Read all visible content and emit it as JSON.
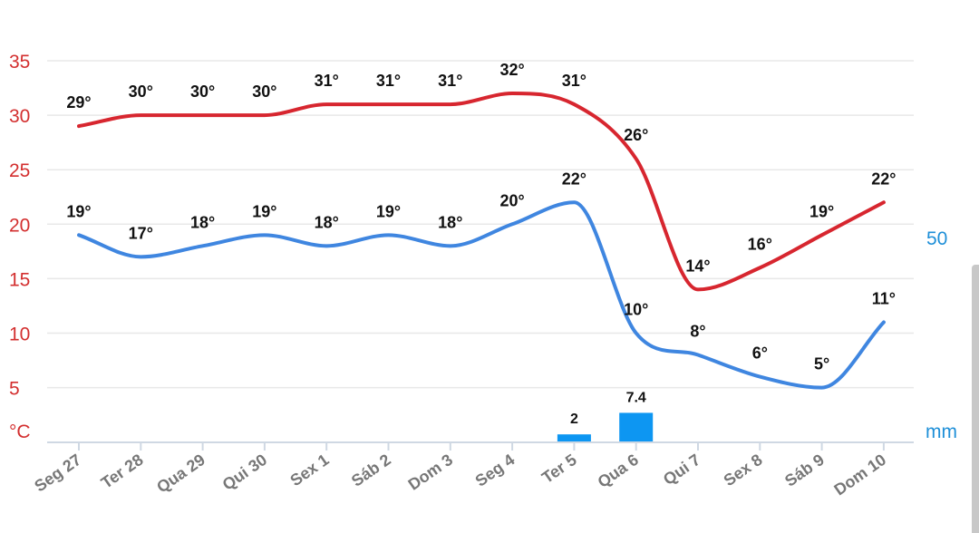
{
  "chart_data": {
    "type": "line",
    "categories": [
      "Seg 27",
      "Ter 28",
      "Qua 29",
      "Qui 30",
      "Sex 1",
      "Sáb 2",
      "Dom 3",
      "Seg 4",
      "Ter 5",
      "Qua 6",
      "Qui 7",
      "Sex 8",
      "Sáb 9",
      "Dom 10"
    ],
    "series": [
      {
        "role": "max",
        "color": "#d7262f",
        "values": [
          29,
          30,
          30,
          30,
          31,
          31,
          31,
          32,
          31,
          26,
          14,
          16,
          19,
          22
        ],
        "labels": [
          "29°",
          "30°",
          "30°",
          "30°",
          "31°",
          "31°",
          "31°",
          "32°",
          "31°",
          "26°",
          "14°",
          "16°",
          "19°",
          "22°"
        ]
      },
      {
        "role": "min",
        "color": "#3f86e0",
        "values": [
          19,
          17,
          18,
          19,
          18,
          19,
          18,
          20,
          22,
          10,
          8,
          6,
          5,
          11
        ],
        "labels": [
          "19°",
          "17°",
          "18°",
          "19°",
          "18°",
          "19°",
          "18°",
          "20°",
          "22°",
          "10°",
          "8°",
          "6°",
          "5°",
          "11°"
        ]
      }
    ],
    "precipitation": {
      "color": "#0d96f2",
      "values": [
        0,
        0,
        0,
        0,
        0,
        0,
        0,
        0,
        2,
        7.4,
        0,
        0,
        0,
        0
      ],
      "labels": [
        {
          "index": 8,
          "text": "2"
        },
        {
          "index": 9,
          "text": "7.4"
        }
      ],
      "max_tick": 50,
      "unit": "mm"
    },
    "y_left": {
      "ticks": [
        "35",
        "30",
        "25",
        "20",
        "15",
        "10",
        "5"
      ],
      "unit": "°C",
      "ylim": [
        0,
        35
      ]
    },
    "y_right": {
      "ticks": [
        "50"
      ],
      "unit": "mm",
      "ylim": [
        0,
        50
      ]
    },
    "grid": true
  }
}
